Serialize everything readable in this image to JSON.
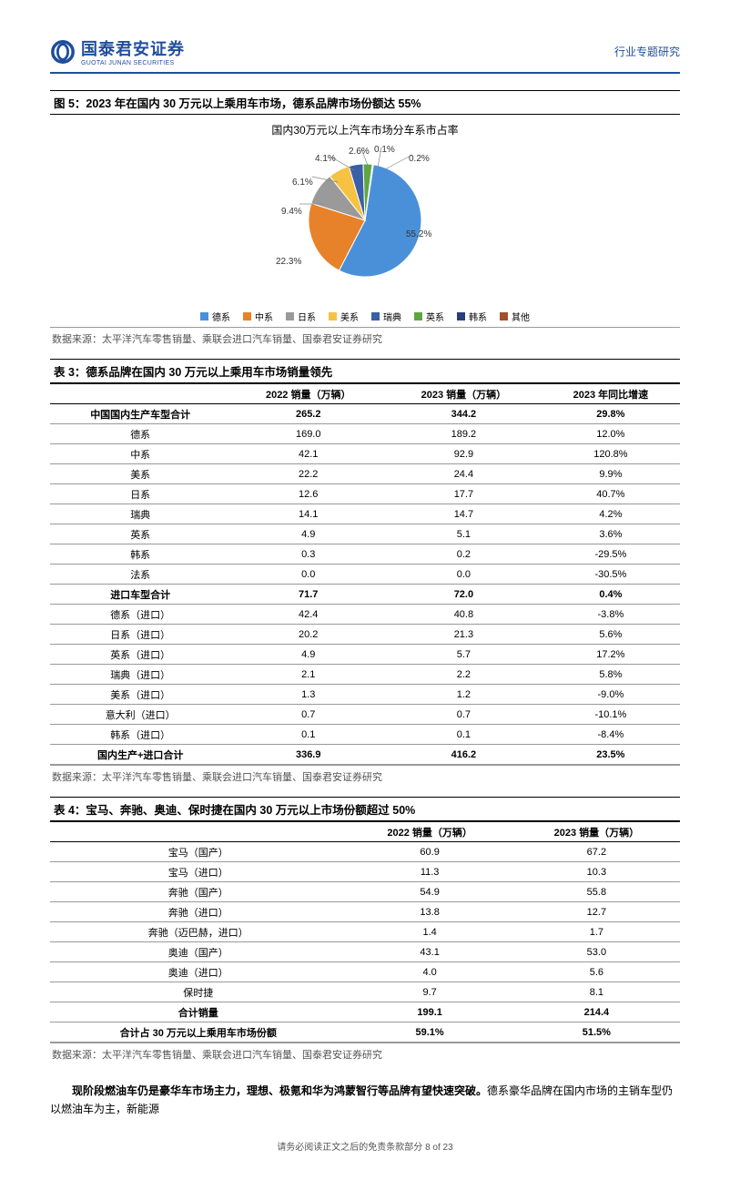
{
  "header": {
    "logo_cn": "国泰君安证券",
    "logo_en": "GUOTAI JUNAN SECURITIES",
    "right": "行业专题研究"
  },
  "figure5": {
    "title": "图 5：2023 年在国内 30 万元以上乘用车市场，德系品牌市场份额达 55%",
    "chart_title": "国内30万元以上汽车市场分车系市占率",
    "type": "pie",
    "series": [
      {
        "label": "德系",
        "value": 55.2,
        "color": "#4a90d9",
        "display": "55.2%"
      },
      {
        "label": "中系",
        "value": 22.3,
        "color": "#e8822a",
        "display": "22.3%"
      },
      {
        "label": "日系",
        "value": 9.4,
        "color": "#9a9a9a",
        "display": "9.4%"
      },
      {
        "label": "美系",
        "value": 6.1,
        "color": "#f5c242",
        "display": "6.1%"
      },
      {
        "label": "瑞典",
        "value": 4.1,
        "color": "#3a5fa8",
        "display": "4.1%"
      },
      {
        "label": "英系",
        "value": 2.6,
        "color": "#5fa641",
        "display": "2.6%"
      },
      {
        "label": "韩系",
        "value": 0.1,
        "color": "#2a3e7a",
        "display": "0.1%"
      },
      {
        "label": "其他",
        "value": 0.2,
        "color": "#a0502a",
        "display": "0.2%"
      }
    ],
    "source": "数据来源：太平洋汽车零售销量、乘联会进口汽车销量、国泰君安证券研究"
  },
  "table3": {
    "title": "表 3：德系品牌在国内 30 万元以上乘用车市场销量领先",
    "columns": [
      "",
      "2022 销量（万辆）",
      "2023 销量（万辆）",
      "2023 年同比增速"
    ],
    "rows": [
      {
        "cells": [
          "中国国内生产车型合计",
          "265.2",
          "344.2",
          "29.8%"
        ],
        "bold": true
      },
      {
        "cells": [
          "德系",
          "169.0",
          "189.2",
          "12.0%"
        ]
      },
      {
        "cells": [
          "中系",
          "42.1",
          "92.9",
          "120.8%"
        ]
      },
      {
        "cells": [
          "美系",
          "22.2",
          "24.4",
          "9.9%"
        ]
      },
      {
        "cells": [
          "日系",
          "12.6",
          "17.7",
          "40.7%"
        ]
      },
      {
        "cells": [
          "瑞典",
          "14.1",
          "14.7",
          "4.2%"
        ]
      },
      {
        "cells": [
          "英系",
          "4.9",
          "5.1",
          "3.6%"
        ]
      },
      {
        "cells": [
          "韩系",
          "0.3",
          "0.2",
          "-29.5%"
        ]
      },
      {
        "cells": [
          "法系",
          "0.0",
          "0.0",
          "-30.5%"
        ]
      },
      {
        "cells": [
          "进口车型合计",
          "71.7",
          "72.0",
          "0.4%"
        ],
        "bold": true
      },
      {
        "cells": [
          "德系（进口）",
          "42.4",
          "40.8",
          "-3.8%"
        ]
      },
      {
        "cells": [
          "日系（进口）",
          "20.2",
          "21.3",
          "5.6%"
        ]
      },
      {
        "cells": [
          "英系（进口）",
          "4.9",
          "5.7",
          "17.2%"
        ]
      },
      {
        "cells": [
          "瑞典（进口）",
          "2.1",
          "2.2",
          "5.8%"
        ]
      },
      {
        "cells": [
          "美系（进口）",
          "1.3",
          "1.2",
          "-9.0%"
        ]
      },
      {
        "cells": [
          "意大利（进口）",
          "0.7",
          "0.7",
          "-10.1%"
        ]
      },
      {
        "cells": [
          "韩系（进口）",
          "0.1",
          "0.1",
          "-8.4%"
        ]
      },
      {
        "cells": [
          "国内生产+进口合计",
          "336.9",
          "416.2",
          "23.5%"
        ],
        "bold": true
      }
    ],
    "source": "数据来源：太平洋汽车零售销量、乘联会进口汽车销量、国泰君安证券研究"
  },
  "table4": {
    "title": "表 4：宝马、奔驰、奥迪、保时捷在国内 30 万元以上市场份额超过 50%",
    "columns": [
      "",
      "2022 销量（万辆）",
      "2023 销量（万辆）"
    ],
    "rows": [
      {
        "cells": [
          "宝马（国产）",
          "60.9",
          "67.2"
        ]
      },
      {
        "cells": [
          "宝马（进口）",
          "11.3",
          "10.3"
        ]
      },
      {
        "cells": [
          "奔驰（国产）",
          "54.9",
          "55.8"
        ]
      },
      {
        "cells": [
          "奔驰（进口）",
          "13.8",
          "12.7"
        ]
      },
      {
        "cells": [
          "奔驰（迈巴赫，进口）",
          "1.4",
          "1.7"
        ]
      },
      {
        "cells": [
          "奥迪（国产）",
          "43.1",
          "53.0"
        ]
      },
      {
        "cells": [
          "奥迪（进口）",
          "4.0",
          "5.6"
        ]
      },
      {
        "cells": [
          "保时捷",
          "9.7",
          "8.1"
        ]
      },
      {
        "cells": [
          "合计销量",
          "199.1",
          "214.4"
        ],
        "bold": true
      },
      {
        "cells": [
          "合计占 30 万元以上乘用车市场份额",
          "59.1%",
          "51.5%"
        ],
        "bold": true
      }
    ],
    "source": "数据来源：太平洋汽车零售销量、乘联会进口汽车销量、国泰君安证券研究"
  },
  "body": {
    "bold": "现阶段燃油车仍是豪华车市场主力，理想、极氪和华为鸿蒙智行等品牌有望快速突破。",
    "rest": "德系豪华品牌在国内市场的主销车型仍以燃油车为主，新能源"
  },
  "footer": "请务必阅读正文之后的免责条款部分  8 of 23"
}
